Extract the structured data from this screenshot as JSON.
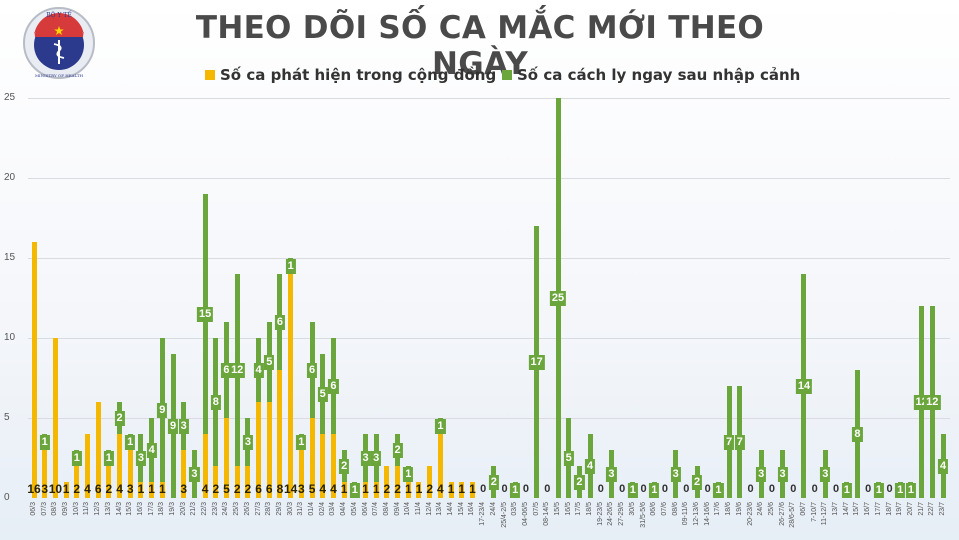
{
  "header": {
    "title": "THEO DÕI SỐ CA MẮC MỚI THEO NGÀY",
    "logo": {
      "top_text": "BỘ Y TẾ",
      "bottom_text": "MINISTRY OF HEALTH",
      "icon": "caduceus-icon"
    }
  },
  "legend": {
    "community": {
      "label": "Số ca phát hiện trong cộng đồng",
      "color": "#f5b800"
    },
    "quarantine": {
      "label": "Số ca cách ly ngay sau nhập cảnh",
      "color": "#6aa63c"
    }
  },
  "chart_data": {
    "type": "bar",
    "stacked": true,
    "title": "THEO DÕI SỐ CA MẮC MỚI THEO NGÀY",
    "xlabel": "",
    "ylabel": "",
    "ylim": [
      0,
      25
    ],
    "yticks": [
      0,
      5,
      10,
      15,
      20,
      25
    ],
    "grid": true,
    "legend_position": "top",
    "categories": [
      "06/3",
      "07/3",
      "08/3",
      "09/3",
      "10/3",
      "11/3",
      "12/3",
      "13/3",
      "14/3",
      "15/3",
      "16/3",
      "17/3",
      "18/3",
      "19/3",
      "20/3",
      "21/3",
      "22/3",
      "23/3",
      "24/3",
      "25/3",
      "26/3",
      "27/3",
      "28/3",
      "29/3",
      "30/3",
      "31/3",
      "01/4",
      "02/4",
      "03/4",
      "04/4",
      "05/4",
      "06/4",
      "07/4",
      "08/4",
      "09/4",
      "10/4",
      "11/4",
      "12/4",
      "13/4",
      "14/4",
      "15/4",
      "16/4",
      "17-23/4",
      "24/4",
      "25/4-2/5",
      "03/5",
      "04-06/5",
      "07/5",
      "08-14/5",
      "15/5",
      "16/5",
      "17/5",
      "18/5",
      "19-23/5",
      "24-26/5",
      "27-29/5",
      "30/5",
      "31/5-5/6",
      "06/6",
      "07/6",
      "08/6",
      "09-11/6",
      "12-13/6",
      "14-16/6",
      "17/6",
      "18/6",
      "19/6",
      "20-23/6",
      "24/6",
      "25/6",
      "26-27/6",
      "28/6-5/7",
      "06/7",
      "7-10/7",
      "11-12/7",
      "13/7",
      "14/7",
      "15/7",
      "16/7",
      "17/7",
      "18/7",
      "19/7",
      "20/7",
      "21/7",
      "22/7",
      "23/7"
    ],
    "series": [
      {
        "name": "Số ca phát hiện trong cộng đồng",
        "color": "#f5b800",
        "values": [
          16,
          3,
          10,
          1,
          2,
          4,
          6,
          2,
          4,
          3,
          1,
          1,
          1,
          0,
          3,
          0,
          4,
          2,
          5,
          2,
          2,
          6,
          6,
          8,
          14,
          3,
          5,
          4,
          4,
          1,
          0,
          1,
          1,
          2,
          2,
          1,
          1,
          2,
          4,
          1,
          1,
          1,
          0,
          0,
          0,
          0,
          0,
          0,
          0,
          0,
          0,
          0,
          0,
          0,
          0,
          0,
          0,
          0,
          0,
          0,
          0,
          0,
          0,
          0,
          0,
          0,
          0,
          0,
          0,
          0,
          0,
          0,
          0,
          0,
          0,
          0,
          0,
          0,
          0,
          0,
          0,
          0,
          0,
          0,
          0,
          0
        ]
      },
      {
        "name": "Số ca cách ly ngay sau nhập cảnh",
        "color": "#6aa63c",
        "values": [
          0,
          1,
          0,
          0,
          1,
          0,
          0,
          1,
          2,
          1,
          3,
          4,
          9,
          9,
          3,
          3,
          15,
          8,
          6,
          12,
          3,
          4,
          5,
          6,
          1,
          1,
          6,
          5,
          6,
          2,
          1,
          3,
          3,
          0,
          2,
          1,
          0,
          0,
          1,
          0,
          0,
          0,
          0,
          2,
          0,
          1,
          0,
          17,
          0,
          25,
          5,
          2,
          4,
          0,
          3,
          0,
          1,
          0,
          1,
          0,
          3,
          0,
          2,
          0,
          1,
          7,
          7,
          0,
          3,
          0,
          3,
          0,
          14,
          0,
          3,
          0,
          1,
          8,
          0,
          1,
          0,
          1,
          1,
          12,
          12,
          4
        ]
      }
    ]
  }
}
